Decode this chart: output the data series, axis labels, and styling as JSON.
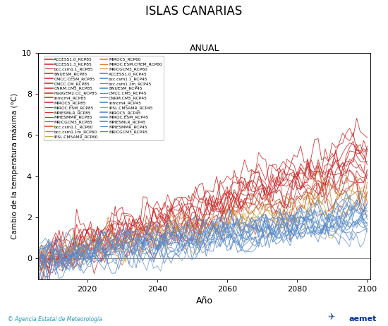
{
  "title": "ISLAS CANARIAS",
  "subtitle": "ANUAL",
  "xlabel": "Año",
  "ylabel": "Cambio de la temperatura máxima (°C)",
  "xlim": [
    2006,
    2101
  ],
  "ylim": [
    -1.0,
    10
  ],
  "yticks": [
    0,
    2,
    4,
    6,
    8,
    10
  ],
  "xticks": [
    2020,
    2040,
    2060,
    2080,
    2100
  ],
  "watermark": "© Agencia Estatal de Meteorología",
  "start_year": 2006,
  "end_year": 2100,
  "legend_col1": [
    [
      "ACCESS1.0_RCP85",
      "#CC3333",
      1.2
    ],
    [
      "ACCESS1.3_RCP85",
      "#CC3333",
      1.2
    ],
    [
      "bcc.csm1.1_RCP85",
      "#CC3333",
      0.8
    ],
    [
      "BNUESM_RCP85",
      "#CC3333",
      1.2
    ],
    [
      "CMCC.CESM_RCP85",
      "#CC3333",
      1.2
    ],
    [
      "CMCC.CM_RCP85",
      "#CC3333",
      1.2
    ],
    [
      "CNRM.CM5_RCP85",
      "#CC3333",
      1.2
    ],
    [
      "HadGEM2.CC_RCP85",
      "#CC3333",
      1.2
    ],
    [
      "Inmcm4_RCP85",
      "#CC3333",
      1.2
    ],
    [
      "MIROC5_RCP85",
      "#CC3333",
      1.2
    ],
    [
      "MIROC.ESM_RCP85",
      "#CC3333",
      0.8
    ],
    [
      "MPIESMLR_RCP85",
      "#CC3333",
      0.8
    ],
    [
      "MPIESMMR_RCP85",
      "#CC3333",
      0.8
    ],
    [
      "MRICGCM3_RCP85",
      "#CC3333",
      0.8
    ],
    [
      "bcc.csm1.1_RCP60",
      "#CC6622",
      1.2
    ],
    [
      "bcc.csm1.1m_RCP60",
      "#CC8833",
      0.8
    ],
    [
      "IPSL.CM5AMR_RCP60",
      "#CCAA44",
      0.8
    ]
  ],
  "legend_col2": [
    [
      "MIROC5_RCP60",
      "#CC8833",
      1.2
    ],
    [
      "MIROC.ESM.CHEM_RCP60",
      "#CC8833",
      0.8
    ],
    [
      "MRICGCM3_RCP60",
      "#CC8833",
      0.8
    ],
    [
      "ACCESS1.0_RCP45",
      "#5588CC",
      1.2
    ],
    [
      "bcc.csm1.1_RCP45",
      "#5588CC",
      1.2
    ],
    [
      "bcc.csm1.1m_RCP45",
      "#5588CC",
      0.8
    ],
    [
      "BNUESM_RCP45",
      "#5588CC",
      1.2
    ],
    [
      "CMCC.CM5_RCP45",
      "#5588CC",
      0.8
    ],
    [
      "CNRM.CM5_RCP45",
      "#5588CC",
      0.8
    ],
    [
      "Inmcm4_RCP45",
      "#5588CC",
      1.2
    ],
    [
      "IPSL.CM5AMR_RCP45",
      "#7799CC",
      0.8
    ],
    [
      "MIROC5_RCP45",
      "#5588CC",
      1.2
    ],
    [
      "MIROC.ESM_RCP45",
      "#5588CC",
      1.2
    ],
    [
      "MPIESMLR_RCP45",
      "#5588CC",
      1.2
    ],
    [
      "MPIESMMR_RCP45",
      "#5588CC",
      0.8
    ],
    [
      "MRICGCM3_RCP45",
      "#5588CC",
      0.8
    ]
  ]
}
